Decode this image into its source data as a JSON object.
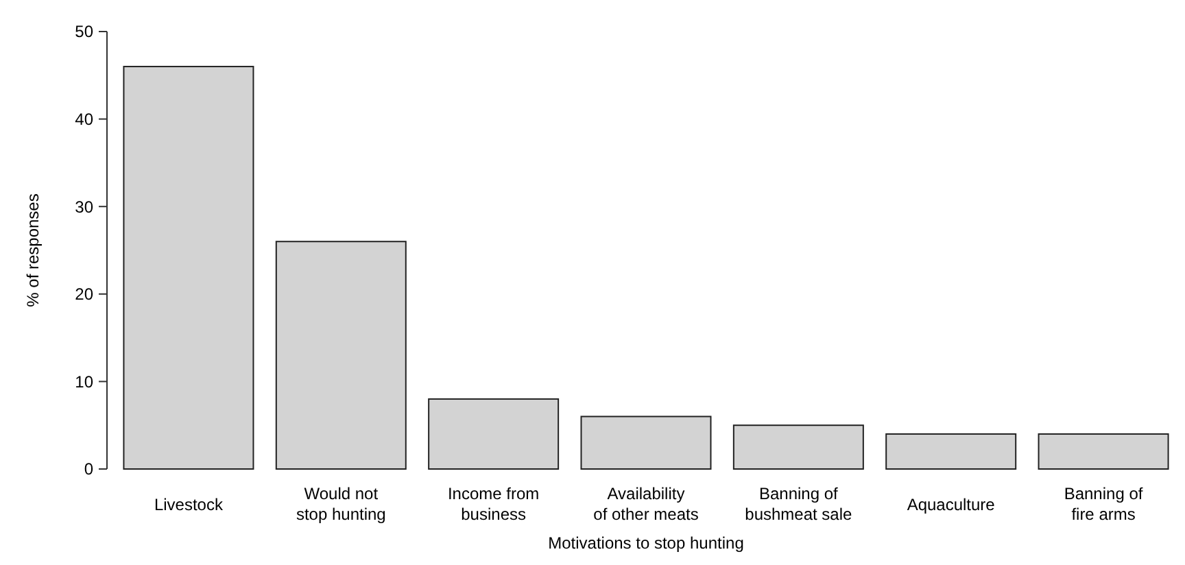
{
  "chart_data": {
    "type": "bar",
    "xlabel": "Motivations to stop hunting",
    "ylabel": "% of responses",
    "categories": [
      "Livestock",
      "Would not stop hunting",
      "Income from business",
      "Availability of other meats",
      "Banning of bushmeat sale",
      "Aquaculture",
      "Banning of fire arms"
    ],
    "values": [
      46,
      26,
      8,
      6,
      5,
      4,
      4
    ],
    "color": "#d3d3d3",
    "ylim": [
      0,
      50
    ],
    "yticks": [
      0,
      10,
      20,
      30,
      40,
      50
    ],
    "grid": false
  }
}
